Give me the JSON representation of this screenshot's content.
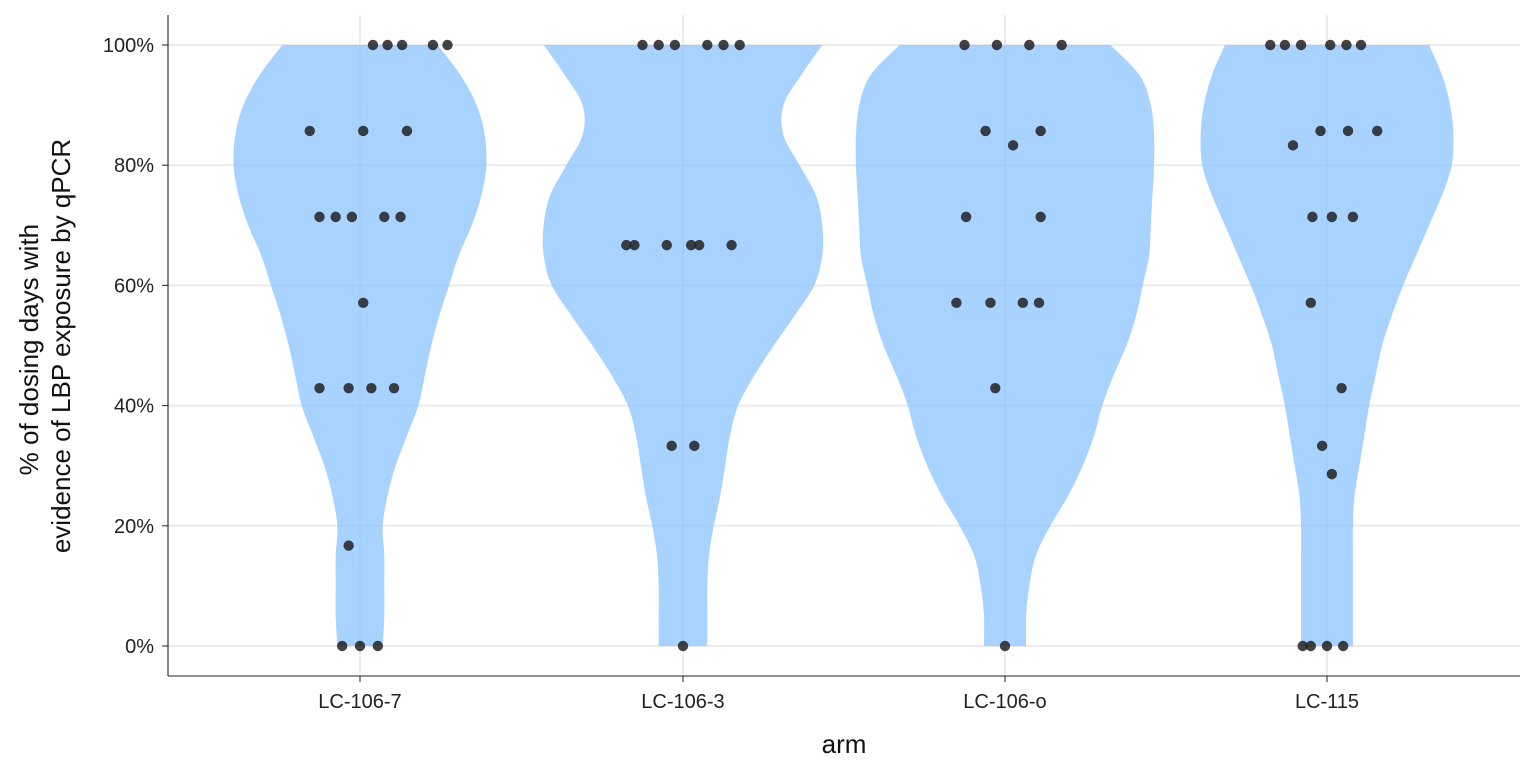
{
  "chart_data": {
    "type": "violin",
    "title": "",
    "xlabel": "arm",
    "ylabel_lines": [
      "% of dosing days with",
      "evidence of LBP exposure by qPCR"
    ],
    "ylim": [
      -5,
      105
    ],
    "y_ticks": [
      0,
      20,
      40,
      60,
      80,
      100
    ],
    "y_tick_labels": [
      "0%",
      "20%",
      "40%",
      "60%",
      "80%",
      "100%"
    ],
    "categories": [
      "LC-106-7",
      "LC-106-3",
      "LC-106-o",
      "LC-115"
    ],
    "grid": true,
    "colors": {
      "violin": "#87c0ff",
      "points": "#222222",
      "grid": "#ebebeb"
    },
    "series": [
      {
        "category": "LC-106-7",
        "density": [
          [
            0,
            0.14
          ],
          [
            5,
            0.15
          ],
          [
            10,
            0.15
          ],
          [
            15,
            0.15
          ],
          [
            20,
            0.14
          ],
          [
            25,
            0.17
          ],
          [
            30,
            0.22
          ],
          [
            35,
            0.29
          ],
          [
            40,
            0.36
          ],
          [
            45,
            0.4
          ],
          [
            50,
            0.44
          ],
          [
            55,
            0.49
          ],
          [
            60,
            0.55
          ],
          [
            65,
            0.61
          ],
          [
            70,
            0.69
          ],
          [
            75,
            0.75
          ],
          [
            80,
            0.78
          ],
          [
            85,
            0.77
          ],
          [
            90,
            0.72
          ],
          [
            95,
            0.62
          ],
          [
            100,
            0.48
          ]
        ],
        "points": [
          {
            "x": 0.08,
            "y": 100
          },
          {
            "x": 0.17,
            "y": 100
          },
          {
            "x": 0.26,
            "y": 100
          },
          {
            "x": 0.45,
            "y": 100
          },
          {
            "x": 0.54,
            "y": 100
          },
          {
            "x": -0.31,
            "y": 85.7
          },
          {
            "x": 0.02,
            "y": 85.7
          },
          {
            "x": 0.29,
            "y": 85.7
          },
          {
            "x": -0.25,
            "y": 71.4
          },
          {
            "x": -0.15,
            "y": 71.4
          },
          {
            "x": -0.05,
            "y": 71.4
          },
          {
            "x": 0.15,
            "y": 71.4
          },
          {
            "x": 0.25,
            "y": 71.4
          },
          {
            "x": 0.02,
            "y": 57.1
          },
          {
            "x": -0.25,
            "y": 42.9
          },
          {
            "x": -0.07,
            "y": 42.9
          },
          {
            "x": 0.07,
            "y": 42.9
          },
          {
            "x": 0.21,
            "y": 42.9
          },
          {
            "x": -0.07,
            "y": 16.7
          },
          {
            "x": -0.11,
            "y": 0
          },
          {
            "x": 0.0,
            "y": 0
          },
          {
            "x": 0.11,
            "y": 0
          }
        ]
      },
      {
        "category": "LC-106-3",
        "density": [
          [
            0,
            0.15
          ],
          [
            5,
            0.15
          ],
          [
            10,
            0.15
          ],
          [
            15,
            0.16
          ],
          [
            20,
            0.19
          ],
          [
            25,
            0.23
          ],
          [
            30,
            0.26
          ],
          [
            35,
            0.29
          ],
          [
            40,
            0.34
          ],
          [
            45,
            0.44
          ],
          [
            50,
            0.56
          ],
          [
            55,
            0.69
          ],
          [
            60,
            0.81
          ],
          [
            65,
            0.86
          ],
          [
            70,
            0.86
          ],
          [
            75,
            0.82
          ],
          [
            80,
            0.72
          ],
          [
            85,
            0.62
          ],
          [
            90,
            0.62
          ],
          [
            95,
            0.73
          ],
          [
            100,
            0.86
          ]
        ],
        "points": [
          {
            "x": -0.25,
            "y": 100
          },
          {
            "x": -0.15,
            "y": 100
          },
          {
            "x": -0.05,
            "y": 100
          },
          {
            "x": 0.15,
            "y": 100
          },
          {
            "x": 0.25,
            "y": 100
          },
          {
            "x": 0.35,
            "y": 100
          },
          {
            "x": -0.35,
            "y": 66.7
          },
          {
            "x": -0.3,
            "y": 66.7
          },
          {
            "x": -0.1,
            "y": 66.7
          },
          {
            "x": 0.05,
            "y": 66.7
          },
          {
            "x": 0.1,
            "y": 66.7
          },
          {
            "x": 0.3,
            "y": 66.7
          },
          {
            "x": -0.07,
            "y": 33.3
          },
          {
            "x": 0.07,
            "y": 33.3
          },
          {
            "x": 0.0,
            "y": 0
          }
        ]
      },
      {
        "category": "LC-106-o",
        "density": [
          [
            0,
            0.13
          ],
          [
            5,
            0.13
          ],
          [
            10,
            0.15
          ],
          [
            15,
            0.19
          ],
          [
            20,
            0.28
          ],
          [
            25,
            0.39
          ],
          [
            30,
            0.48
          ],
          [
            35,
            0.55
          ],
          [
            40,
            0.6
          ],
          [
            45,
            0.67
          ],
          [
            50,
            0.75
          ],
          [
            55,
            0.81
          ],
          [
            60,
            0.85
          ],
          [
            65,
            0.89
          ],
          [
            70,
            0.9
          ],
          [
            75,
            0.91
          ],
          [
            80,
            0.92
          ],
          [
            85,
            0.92
          ],
          [
            90,
            0.9
          ],
          [
            95,
            0.83
          ],
          [
            100,
            0.65
          ]
        ],
        "points": [
          {
            "x": -0.25,
            "y": 100
          },
          {
            "x": -0.05,
            "y": 100
          },
          {
            "x": 0.15,
            "y": 100
          },
          {
            "x": 0.35,
            "y": 100
          },
          {
            "x": -0.12,
            "y": 85.7
          },
          {
            "x": 0.22,
            "y": 85.7
          },
          {
            "x": 0.05,
            "y": 83.3
          },
          {
            "x": -0.24,
            "y": 71.4
          },
          {
            "x": 0.22,
            "y": 71.4
          },
          {
            "x": -0.3,
            "y": 57.1
          },
          {
            "x": -0.09,
            "y": 57.1
          },
          {
            "x": 0.11,
            "y": 57.1
          },
          {
            "x": 0.21,
            "y": 57.1
          },
          {
            "x": -0.06,
            "y": 42.9
          },
          {
            "x": 0.0,
            "y": 0
          }
        ]
      },
      {
        "category": "LC-115",
        "density": [
          [
            0,
            0.16
          ],
          [
            5,
            0.16
          ],
          [
            10,
            0.16
          ],
          [
            15,
            0.16
          ],
          [
            20,
            0.16
          ],
          [
            25,
            0.17
          ],
          [
            30,
            0.2
          ],
          [
            35,
            0.23
          ],
          [
            40,
            0.26
          ],
          [
            45,
            0.3
          ],
          [
            50,
            0.34
          ],
          [
            55,
            0.4
          ],
          [
            60,
            0.47
          ],
          [
            65,
            0.55
          ],
          [
            70,
            0.63
          ],
          [
            75,
            0.71
          ],
          [
            80,
            0.77
          ],
          [
            85,
            0.78
          ],
          [
            90,
            0.76
          ],
          [
            95,
            0.71
          ],
          [
            100,
            0.63
          ]
        ],
        "points": [
          {
            "x": -0.35,
            "y": 100
          },
          {
            "x": -0.26,
            "y": 100
          },
          {
            "x": -0.16,
            "y": 100
          },
          {
            "x": 0.02,
            "y": 100
          },
          {
            "x": 0.12,
            "y": 100
          },
          {
            "x": 0.21,
            "y": 100
          },
          {
            "x": -0.21,
            "y": 83.3
          },
          {
            "x": -0.04,
            "y": 85.7
          },
          {
            "x": 0.13,
            "y": 85.7
          },
          {
            "x": 0.31,
            "y": 85.7
          },
          {
            "x": -0.09,
            "y": 71.4
          },
          {
            "x": 0.03,
            "y": 71.4
          },
          {
            "x": 0.16,
            "y": 71.4
          },
          {
            "x": -0.1,
            "y": 57.1
          },
          {
            "x": 0.09,
            "y": 42.9
          },
          {
            "x": -0.03,
            "y": 33.3
          },
          {
            "x": 0.03,
            "y": 28.6
          },
          {
            "x": -0.15,
            "y": 0
          },
          {
            "x": -0.1,
            "y": 0
          },
          {
            "x": 0.0,
            "y": 0
          },
          {
            "x": 0.1,
            "y": 0
          }
        ]
      }
    ]
  }
}
